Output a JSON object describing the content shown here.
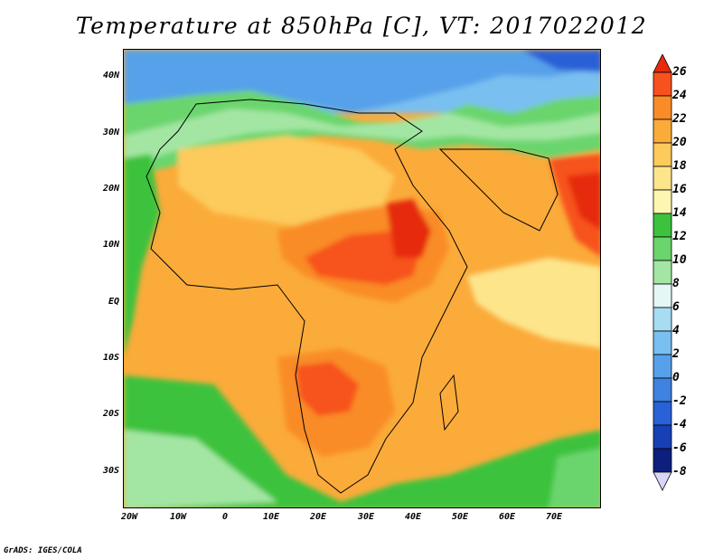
{
  "title": "Temperature at 850hPa [C], VT: 2017022012",
  "credit": "GrADS: IGES/COLA",
  "map": {
    "lat_ticks": [
      "40N",
      "30N",
      "20N",
      "10N",
      "EQ",
      "10S",
      "20S",
      "30S"
    ],
    "lon_ticks": [
      "20W",
      "10W",
      "0",
      "10E",
      "20E",
      "30E",
      "40E",
      "50E",
      "60E",
      "70E"
    ]
  },
  "colorbar": {
    "levels": [
      "26",
      "24",
      "22",
      "20",
      "18",
      "16",
      "14",
      "12",
      "10",
      "8",
      "6",
      "4",
      "2",
      "0",
      "-2",
      "-4",
      "-6",
      "-8"
    ],
    "colors": [
      "#e62a0b",
      "#f7521e",
      "#f98c27",
      "#fbab3a",
      "#fccb5c",
      "#fde58c",
      "#fdf6b2",
      "#3cc23d",
      "#6ad56d",
      "#a3e6a3",
      "#e4f7f5",
      "#a8dcf3",
      "#79bff0",
      "#56a1ea",
      "#3f82df",
      "#2961d6",
      "#1740b5",
      "#0d1f7c"
    ]
  }
}
